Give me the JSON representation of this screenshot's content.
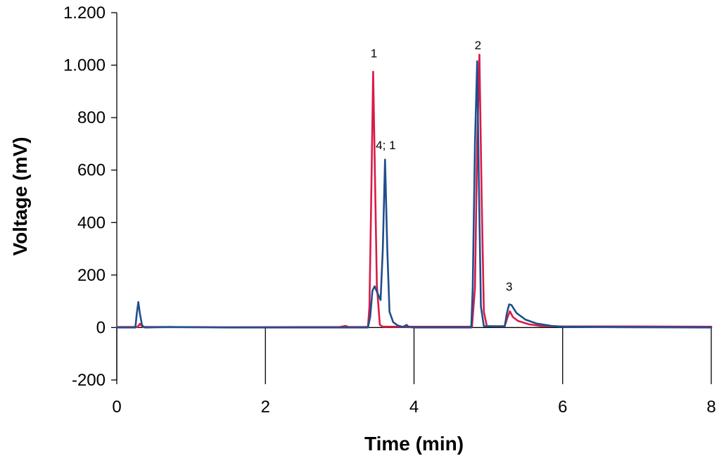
{
  "chart_data": {
    "type": "line",
    "title": "",
    "xlabel": "Time (min)",
    "ylabel": "Voltage (mV)",
    "xlim": [
      0,
      8
    ],
    "ylim": [
      -200,
      1200
    ],
    "xticks": [
      0,
      2,
      4,
      6,
      8
    ],
    "xtick_labels": [
      "0",
      "2",
      "4",
      "6",
      "8"
    ],
    "yticks": [
      -200,
      0,
      200,
      400,
      600,
      800,
      1000,
      1200
    ],
    "ytick_labels": [
      "-200",
      "0",
      "200",
      "400",
      "600",
      "800",
      "1.000",
      "1.200"
    ],
    "grid": false,
    "legend": "none",
    "colors": {
      "series_red": "#d81b4a",
      "series_blue": "#1f4e8c",
      "axis": "#000000"
    },
    "series": [
      {
        "name": "red",
        "color": "#d81b4a",
        "points": [
          [
            0,
            2
          ],
          [
            0.28,
            2
          ],
          [
            0.31,
            14
          ],
          [
            0.35,
            2
          ],
          [
            0.7,
            2
          ],
          [
            1.5,
            1
          ],
          [
            3.0,
            2
          ],
          [
            3.08,
            6
          ],
          [
            3.12,
            2
          ],
          [
            3.38,
            2
          ],
          [
            3.4,
            80
          ],
          [
            3.42,
            420
          ],
          [
            3.45,
            975
          ],
          [
            3.47,
            650
          ],
          [
            3.5,
            160
          ],
          [
            3.54,
            10
          ],
          [
            3.58,
            3
          ],
          [
            4.78,
            3
          ],
          [
            4.82,
            150
          ],
          [
            4.85,
            700
          ],
          [
            4.88,
            1040
          ],
          [
            4.91,
            500
          ],
          [
            4.94,
            60
          ],
          [
            4.98,
            5
          ],
          [
            5.22,
            5
          ],
          [
            5.26,
            40
          ],
          [
            5.29,
            62
          ],
          [
            5.33,
            40
          ],
          [
            5.4,
            25
          ],
          [
            5.55,
            12
          ],
          [
            5.7,
            6
          ],
          [
            6.0,
            4
          ],
          [
            7.0,
            4
          ],
          [
            8.0,
            3
          ]
        ]
      },
      {
        "name": "blue",
        "color": "#1f4e8c",
        "points": [
          [
            0,
            0
          ],
          [
            0.25,
            0
          ],
          [
            0.27,
            55
          ],
          [
            0.29,
            97
          ],
          [
            0.31,
            55
          ],
          [
            0.34,
            8
          ],
          [
            0.38,
            0
          ],
          [
            0.7,
            2
          ],
          [
            1.5,
            0
          ],
          [
            3.0,
            0
          ],
          [
            3.38,
            0
          ],
          [
            3.41,
            40
          ],
          [
            3.44,
            140
          ],
          [
            3.47,
            157
          ],
          [
            3.51,
            130
          ],
          [
            3.55,
            105
          ],
          [
            3.58,
            300
          ],
          [
            3.61,
            640
          ],
          [
            3.64,
            300
          ],
          [
            3.67,
            60
          ],
          [
            3.72,
            20
          ],
          [
            3.78,
            8
          ],
          [
            3.85,
            2
          ],
          [
            3.9,
            10
          ],
          [
            3.93,
            2
          ],
          [
            4.0,
            0
          ],
          [
            4.77,
            0
          ],
          [
            4.79,
            150
          ],
          [
            4.82,
            700
          ],
          [
            4.85,
            1015
          ],
          [
            4.87,
            600
          ],
          [
            4.9,
            80
          ],
          [
            4.94,
            5
          ],
          [
            5.22,
            4
          ],
          [
            5.25,
            55
          ],
          [
            5.28,
            88
          ],
          [
            5.31,
            86
          ],
          [
            5.38,
            55
          ],
          [
            5.5,
            30
          ],
          [
            5.65,
            15
          ],
          [
            5.85,
            6
          ],
          [
            6.0,
            3
          ],
          [
            7.0,
            1
          ],
          [
            8.0,
            0
          ]
        ]
      }
    ],
    "annotations": [
      {
        "text": "1",
        "x": 3.46,
        "y": 1030
      },
      {
        "text": "4; 1",
        "x": 3.62,
        "y": 680
      },
      {
        "text": "2",
        "x": 4.86,
        "y": 1060
      },
      {
        "text": "3",
        "x": 5.28,
        "y": 140
      }
    ]
  }
}
